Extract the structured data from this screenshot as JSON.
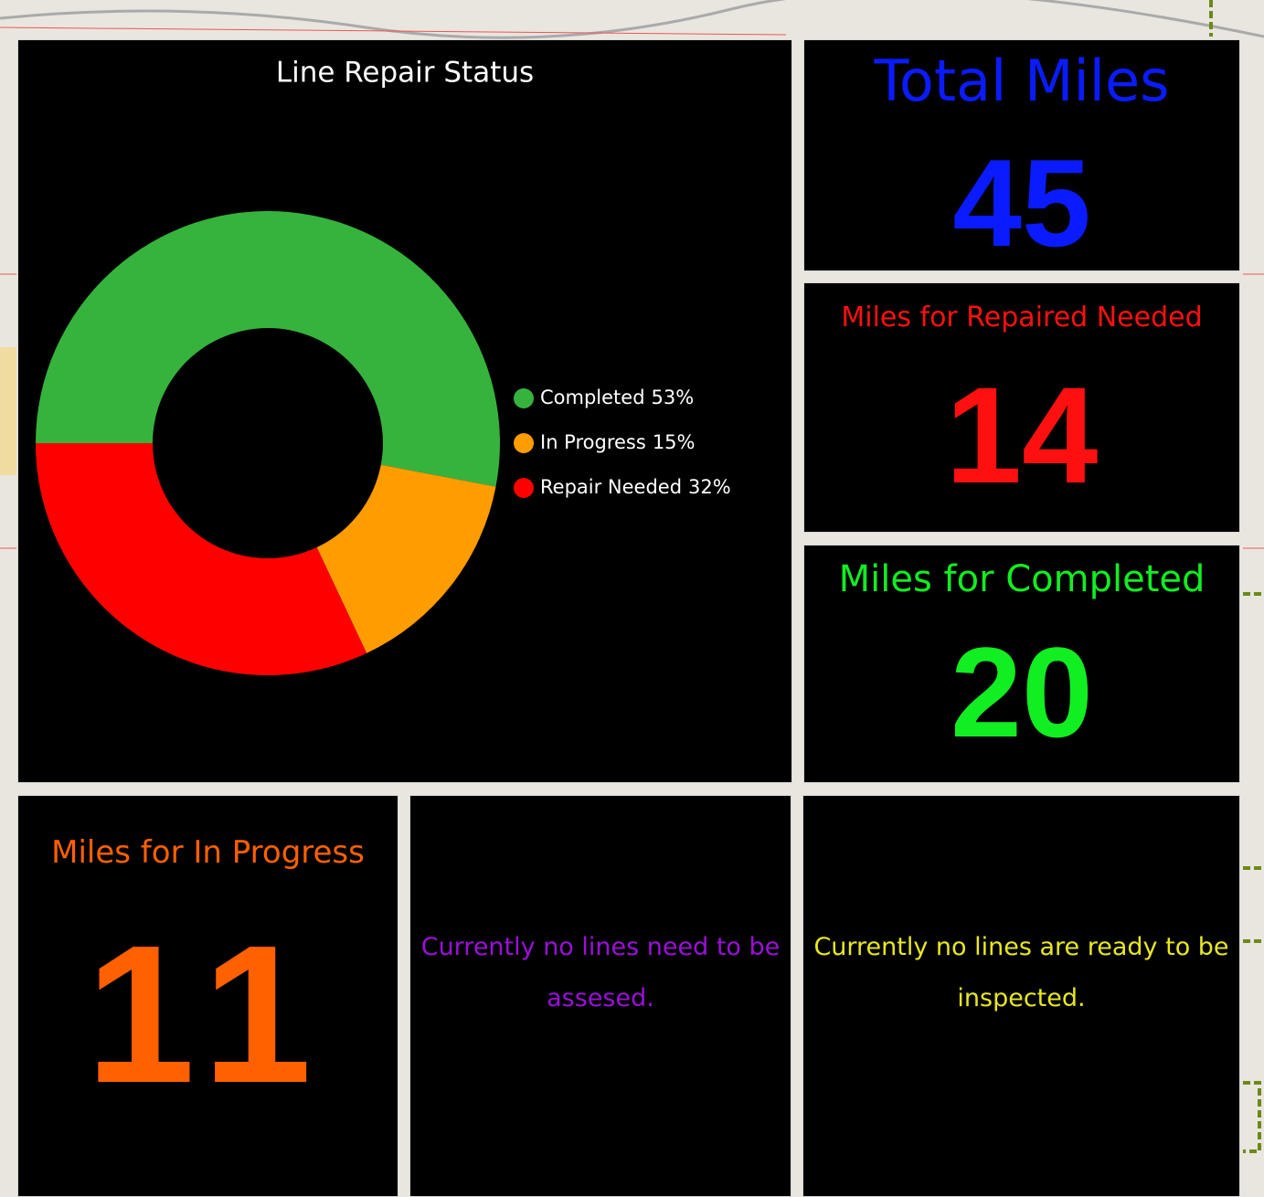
{
  "chart_data": {
    "type": "donut",
    "title": "Line Repair Status",
    "categories": [
      "Completed",
      "In Progress",
      "Repair Needed"
    ],
    "values": [
      53,
      15,
      32
    ],
    "value_labels": [
      "53%",
      "15%",
      "32%"
    ],
    "colors": [
      "#36b33c",
      "#ff9c00",
      "#ff0000"
    ]
  },
  "indicators": [
    {
      "title": "Total Miles",
      "value": 45,
      "color": "#0a1cff"
    },
    {
      "title": "Miles for Repaired Needed",
      "value": 14,
      "color": "#ff1010"
    },
    {
      "title": "Miles for Completed",
      "value": 20,
      "color": "#11ee22"
    },
    {
      "title": "Miles for In Progress",
      "value": 11,
      "color": "#ff6000"
    }
  ],
  "notes": [
    {
      "text": "Currently no lines need to be assesed.",
      "color": "#9a10d8"
    },
    {
      "text": "Currently no lines are ready to be inspected.",
      "color": "#e8e820"
    }
  ]
}
